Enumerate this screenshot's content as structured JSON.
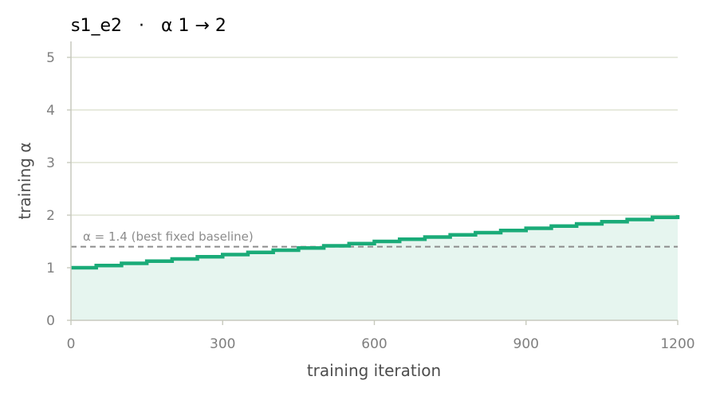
{
  "chart_data": {
    "type": "line",
    "title": "s1_e2   ·   α 1 → 2",
    "xlabel": "training iteration",
    "ylabel": "training α",
    "xlim": [
      0,
      1200
    ],
    "ylim": [
      0,
      5.3
    ],
    "xticks": [
      0,
      300,
      600,
      900,
      1200
    ],
    "yticks": [
      0,
      1,
      2,
      3,
      4,
      5
    ],
    "grid": "horizontal",
    "series": [
      {
        "name": "",
        "style": "step-post",
        "x": [
          0,
          50,
          100,
          150,
          200,
          250,
          300,
          350,
          400,
          450,
          500,
          550,
          600,
          650,
          700,
          750,
          800,
          850,
          900,
          950,
          1000,
          1050,
          1100,
          1150,
          1200
        ],
        "values": [
          1.0,
          1.0417,
          1.0833,
          1.125,
          1.1667,
          1.2083,
          1.25,
          1.2917,
          1.3333,
          1.375,
          1.4167,
          1.4583,
          1.5,
          1.5417,
          1.5833,
          1.625,
          1.6667,
          1.7083,
          1.75,
          1.7917,
          1.8333,
          1.875,
          1.9167,
          1.9583,
          2.0
        ],
        "fill_to_zero": true
      }
    ],
    "reference_line": {
      "y": 1.4,
      "style": "dashed",
      "label": "α = 1.4 (best fixed baseline)"
    },
    "colors": {
      "series": "#1aab78",
      "fill": "#e6f5ef",
      "reference": "#8c8c8c",
      "grid": "#dfe3d3",
      "axis": "#c7c9bd"
    }
  }
}
